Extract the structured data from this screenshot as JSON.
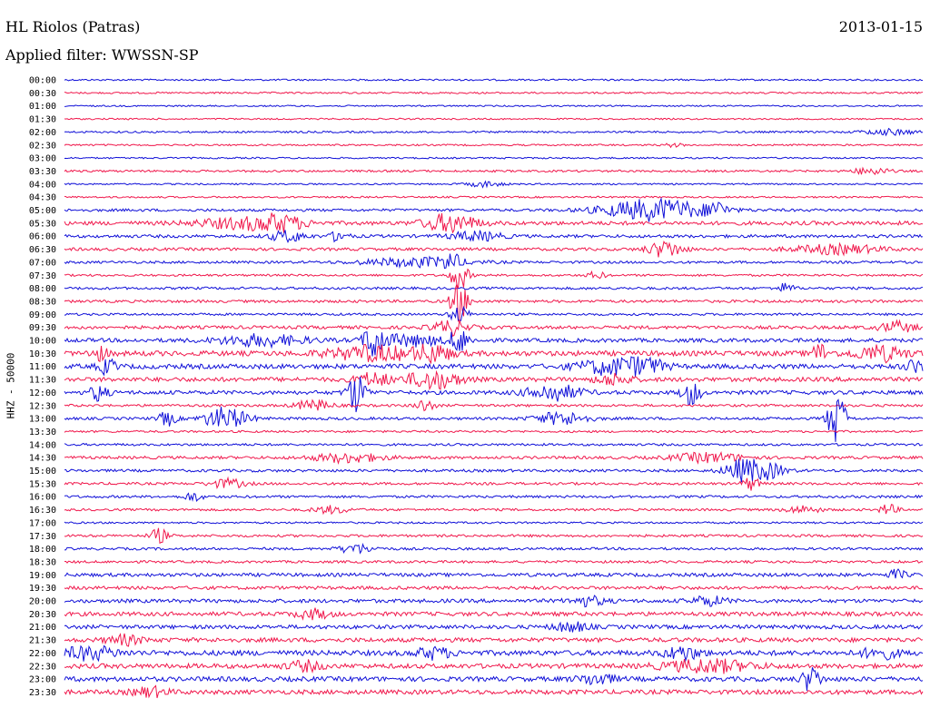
{
  "header": {
    "station": "HL Riolos (Patras)",
    "date": "2013-01-15",
    "filter_prefix": "Applied filter:",
    "filter_name": "WWSSN-SP"
  },
  "side_label": "HHZ - 50000",
  "colors": {
    "even": "#1010d8",
    "odd": "#f0184c"
  },
  "chart_data": {
    "type": "line",
    "title": "HL Riolos (Patras)",
    "subtitle": "Applied filter: WWSSN-SP",
    "ylabel": "HHZ - 50000",
    "rows": [
      {
        "label": "00:00",
        "level": 0.15,
        "events": []
      },
      {
        "label": "00:30",
        "level": 0.15,
        "events": []
      },
      {
        "label": "01:00",
        "level": 0.1,
        "events": []
      },
      {
        "label": "01:30",
        "level": 0.1,
        "events": []
      },
      {
        "label": "02:00",
        "level": 0.2,
        "events": [
          [
            0.96,
            0.03,
            3
          ]
        ]
      },
      {
        "label": "02:30",
        "level": 0.15,
        "events": [
          [
            0.71,
            0.01,
            2
          ]
        ]
      },
      {
        "label": "03:00",
        "level": 0.12,
        "events": []
      },
      {
        "label": "03:30",
        "level": 0.25,
        "events": [
          [
            0.94,
            0.02,
            4
          ]
        ]
      },
      {
        "label": "04:00",
        "level": 0.12,
        "events": [
          [
            0.49,
            0.02,
            3
          ]
        ]
      },
      {
        "label": "04:30",
        "level": 0.15,
        "events": []
      },
      {
        "label": "05:00",
        "level": 0.4,
        "events": [
          [
            0.69,
            0.06,
            12
          ],
          [
            0.76,
            0.01,
            8
          ]
        ]
      },
      {
        "label": "05:30",
        "level": 0.7,
        "events": [
          [
            0.2,
            0.05,
            5
          ],
          [
            0.25,
            0.03,
            8
          ],
          [
            0.45,
            0.03,
            10
          ]
        ]
      },
      {
        "label": "06:00",
        "level": 0.5,
        "events": [
          [
            0.26,
            0.02,
            6
          ],
          [
            0.32,
            0.01,
            6
          ],
          [
            0.48,
            0.03,
            5
          ]
        ]
      },
      {
        "label": "06:30",
        "level": 0.45,
        "events": [
          [
            0.7,
            0.02,
            9
          ],
          [
            0.9,
            0.05,
            5
          ]
        ]
      },
      {
        "label": "07:00",
        "level": 0.35,
        "events": [
          [
            0.41,
            0.06,
            5
          ],
          [
            0.45,
            0.01,
            8
          ]
        ]
      },
      {
        "label": "07:30",
        "level": 0.25,
        "events": [
          [
            0.46,
            0.01,
            16
          ],
          [
            0.62,
            0.01,
            4
          ]
        ]
      },
      {
        "label": "08:00",
        "level": 0.35,
        "events": [
          [
            0.84,
            0.01,
            5
          ]
        ]
      },
      {
        "label": "08:30",
        "level": 0.4,
        "events": [
          [
            0.46,
            0.01,
            22
          ]
        ]
      },
      {
        "label": "09:00",
        "level": 0.3,
        "events": [
          [
            0.46,
            0.01,
            10
          ]
        ]
      },
      {
        "label": "09:30",
        "level": 0.55,
        "events": [
          [
            0.45,
            0.02,
            8
          ],
          [
            0.97,
            0.02,
            6
          ]
        ]
      },
      {
        "label": "10:00",
        "level": 0.7,
        "events": [
          [
            0.23,
            0.05,
            6
          ],
          [
            0.36,
            0.01,
            20
          ],
          [
            0.4,
            0.04,
            6
          ],
          [
            0.46,
            0.01,
            14
          ]
        ]
      },
      {
        "label": "10:30",
        "level": 1.0,
        "events": [
          [
            0.04,
            0.01,
            7
          ],
          [
            0.36,
            0.05,
            8
          ],
          [
            0.43,
            0.02,
            9
          ],
          [
            0.88,
            0.01,
            10
          ],
          [
            0.95,
            0.03,
            8
          ]
        ]
      },
      {
        "label": "11:00",
        "level": 0.9,
        "events": [
          [
            0.05,
            0.01,
            8
          ],
          [
            0.64,
            0.04,
            9
          ],
          [
            0.68,
            0.02,
            6
          ],
          [
            0.99,
            0.01,
            7
          ]
        ]
      },
      {
        "label": "11:30",
        "level": 0.8,
        "events": [
          [
            0.36,
            0.02,
            7
          ],
          [
            0.43,
            0.03,
            10
          ],
          [
            0.64,
            0.02,
            6
          ]
        ]
      },
      {
        "label": "12:00",
        "level": 0.7,
        "events": [
          [
            0.04,
            0.01,
            9
          ],
          [
            0.34,
            0.01,
            22
          ],
          [
            0.57,
            0.03,
            9
          ],
          [
            0.73,
            0.01,
            14
          ]
        ]
      },
      {
        "label": "12:30",
        "level": 0.35,
        "events": [
          [
            0.29,
            0.02,
            6
          ],
          [
            0.42,
            0.01,
            7
          ]
        ]
      },
      {
        "label": "13:00",
        "level": 0.4,
        "events": [
          [
            0.12,
            0.01,
            8
          ],
          [
            0.18,
            0.02,
            9
          ],
          [
            0.2,
            0.02,
            6
          ],
          [
            0.58,
            0.03,
            7
          ],
          [
            0.9,
            0.01,
            30
          ]
        ]
      },
      {
        "label": "13:30",
        "level": 0.25,
        "events": []
      },
      {
        "label": "14:00",
        "level": 0.3,
        "events": []
      },
      {
        "label": "14:30",
        "level": 0.45,
        "events": [
          [
            0.33,
            0.04,
            5
          ],
          [
            0.75,
            0.04,
            5
          ]
        ]
      },
      {
        "label": "15:00",
        "level": 0.4,
        "events": [
          [
            0.79,
            0.02,
            12
          ],
          [
            0.82,
            0.02,
            8
          ]
        ]
      },
      {
        "label": "15:30",
        "level": 0.35,
        "events": [
          [
            0.19,
            0.02,
            5
          ],
          [
            0.8,
            0.01,
            7
          ]
        ]
      },
      {
        "label": "16:00",
        "level": 0.35,
        "events": [
          [
            0.15,
            0.01,
            5
          ]
        ]
      },
      {
        "label": "16:30",
        "level": 0.3,
        "events": [
          [
            0.31,
            0.02,
            4
          ],
          [
            0.86,
            0.02,
            4
          ],
          [
            0.96,
            0.01,
            6
          ]
        ]
      },
      {
        "label": "17:00",
        "level": 0.2,
        "events": []
      },
      {
        "label": "17:30",
        "level": 0.35,
        "events": [
          [
            0.11,
            0.01,
            8
          ]
        ]
      },
      {
        "label": "18:00",
        "level": 0.35,
        "events": [
          [
            0.34,
            0.02,
            5
          ]
        ]
      },
      {
        "label": "18:30",
        "level": 0.35,
        "events": []
      },
      {
        "label": "19:00",
        "level": 0.6,
        "events": [
          [
            0.97,
            0.01,
            5
          ]
        ]
      },
      {
        "label": "19:30",
        "level": 0.55,
        "events": []
      },
      {
        "label": "20:00",
        "level": 0.65,
        "events": [
          [
            0.61,
            0.02,
            5
          ],
          [
            0.75,
            0.02,
            5
          ]
        ]
      },
      {
        "label": "20:30",
        "level": 0.75,
        "events": [
          [
            0.29,
            0.02,
            5
          ]
        ]
      },
      {
        "label": "21:00",
        "level": 0.7,
        "events": [
          [
            0.59,
            0.02,
            5
          ]
        ]
      },
      {
        "label": "21:30",
        "level": 0.8,
        "events": [
          [
            0.07,
            0.02,
            5
          ]
        ]
      },
      {
        "label": "22:00",
        "level": 1.0,
        "events": [
          [
            0.03,
            0.03,
            7
          ],
          [
            0.43,
            0.02,
            6
          ],
          [
            0.72,
            0.02,
            7
          ],
          [
            0.95,
            0.02,
            6
          ]
        ]
      },
      {
        "label": "22:30",
        "level": 0.9,
        "events": [
          [
            0.75,
            0.05,
            7
          ],
          [
            0.28,
            0.02,
            5
          ]
        ]
      },
      {
        "label": "23:00",
        "level": 0.9,
        "events": [
          [
            0.62,
            0.02,
            6
          ],
          [
            0.87,
            0.01,
            14
          ]
        ]
      },
      {
        "label": "23:30",
        "level": 0.85,
        "events": [
          [
            0.1,
            0.02,
            5
          ]
        ]
      }
    ]
  }
}
